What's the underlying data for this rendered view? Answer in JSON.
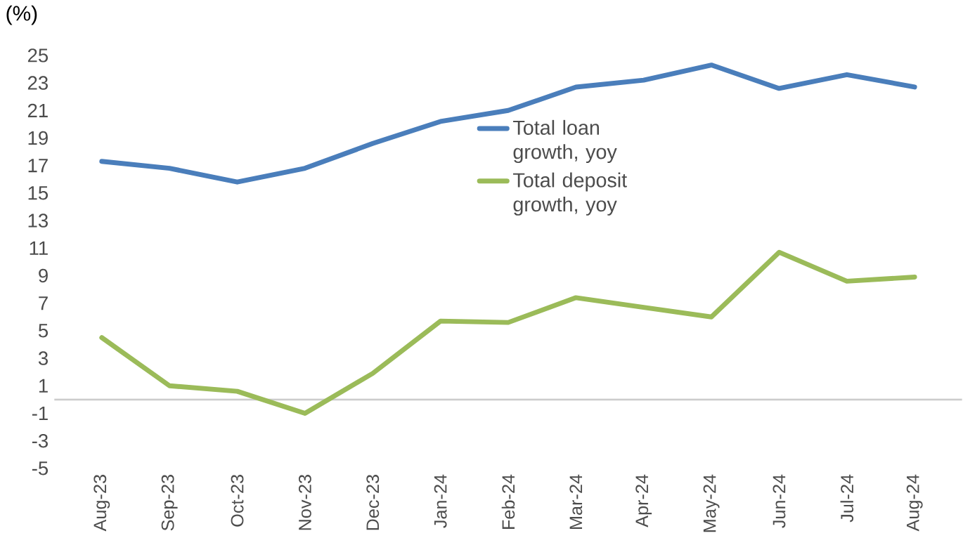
{
  "chart_data": {
    "type": "line",
    "ylabel": "(%)",
    "categories": [
      "Aug-23",
      "Sep-23",
      "Oct-23",
      "Nov-23",
      "Dec-23",
      "Jan-24",
      "Feb-24",
      "Mar-24",
      "Apr-24",
      "May-24",
      "Jun-24",
      "Jul-24",
      "Aug-24"
    ],
    "series": [
      {
        "name": "Total loan growth, yoy",
        "color": "#4a7ebb",
        "values": [
          17.3,
          16.8,
          15.8,
          16.8,
          18.6,
          20.2,
          21.0,
          22.7,
          23.2,
          24.3,
          22.6,
          23.6,
          22.7
        ]
      },
      {
        "name": "Total deposit growth, yoy",
        "color": "#9bbb59",
        "values": [
          4.5,
          1.0,
          0.6,
          -1.0,
          1.9,
          5.7,
          5.6,
          7.4,
          6.7,
          6.0,
          10.7,
          8.6,
          8.9
        ]
      }
    ],
    "ylim": [
      -5,
      25
    ],
    "yticks": [
      -5,
      -3,
      -1,
      1,
      3,
      5,
      7,
      9,
      11,
      13,
      15,
      17,
      19,
      21,
      23,
      25
    ],
    "legend": "top",
    "line_style": "solid",
    "marker": "none"
  }
}
